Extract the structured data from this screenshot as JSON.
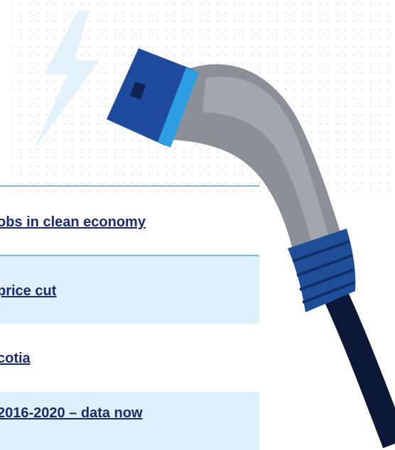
{
  "links": [
    "obs in clean economy",
    "price cut",
    "cotia",
    "2016-2020 – data now"
  ]
}
